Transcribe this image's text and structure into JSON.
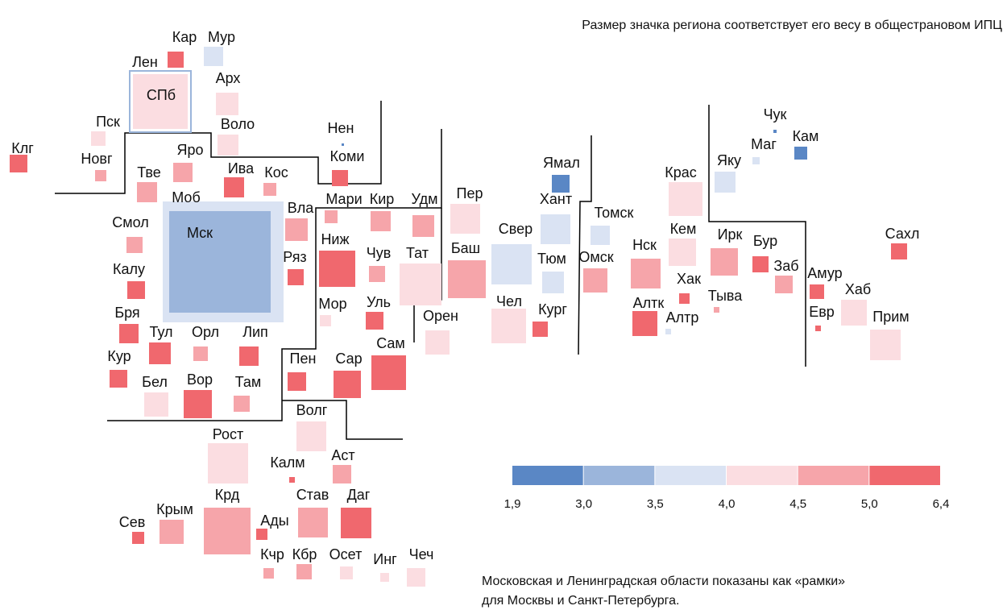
{
  "note_top": "Размер значка региона соответствует его весу в общестрановом ИПЦ",
  "footnote": [
    "Московская и Ленинградская области показаны как «рамки»",
    "для Москвы и Санкт-Петербурга."
  ],
  "legend": {
    "colors": [
      "#5a87c5",
      "#9bb5db",
      "#dae3f3",
      "#fbdde1",
      "#f6a5aa",
      "#f0686e"
    ],
    "ticks": [
      {
        "value": 1.9,
        "label": "1,9"
      },
      {
        "value": 3.0,
        "label": "3,0"
      },
      {
        "value": 3.5,
        "label": "3,5"
      },
      {
        "value": 4.0,
        "label": "4,0"
      },
      {
        "value": 4.5,
        "label": "4,5"
      },
      {
        "value": 5.0,
        "label": "5,0"
      },
      {
        "value": 6.4,
        "label": "6,4"
      }
    ]
  },
  "regions": [
    {
      "label": "Лен",
      "color": "#9bb5db"
    },
    {
      "label": "СПб",
      "color": "#fbdde1"
    },
    {
      "label": "Моб",
      "color": "#dae3f3"
    },
    {
      "label": "Мск",
      "color": "#9bb5db"
    },
    {
      "label": "Кар",
      "color": "#f0686e"
    },
    {
      "label": "Мур",
      "color": "#dae3f3"
    },
    {
      "label": "Арх",
      "color": "#fbdde1"
    },
    {
      "label": "Пск",
      "color": "#fbdde1"
    },
    {
      "label": "Воло",
      "color": "#fbdde1"
    },
    {
      "label": "Клг",
      "color": "#f0686e"
    },
    {
      "label": "Новг",
      "color": "#f6a5aa"
    },
    {
      "label": "Яро",
      "color": "#f6a5aa"
    },
    {
      "label": "Тве",
      "color": "#f6a5aa"
    },
    {
      "label": "Ива",
      "color": "#f0686e"
    },
    {
      "label": "Кос",
      "color": "#f6a5aa"
    },
    {
      "label": "Нен",
      "color": "#5a87c5"
    },
    {
      "label": "Коми",
      "color": "#f0686e"
    },
    {
      "label": "Вла",
      "color": "#f6a5aa"
    },
    {
      "label": "Мари",
      "color": "#f6a5aa"
    },
    {
      "label": "Кир",
      "color": "#f6a5aa"
    },
    {
      "label": "Удм",
      "color": "#f6a5aa"
    },
    {
      "label": "Пер",
      "color": "#fbdde1"
    },
    {
      "label": "Смол",
      "color": "#f6a5aa"
    },
    {
      "label": "Ниж",
      "color": "#f0686e"
    },
    {
      "label": "Ряз",
      "color": "#f0686e"
    },
    {
      "label": "Чув",
      "color": "#f6a5aa"
    },
    {
      "label": "Тат",
      "color": "#fbdde1"
    },
    {
      "label": "Баш",
      "color": "#f6a5aa"
    },
    {
      "label": "Свер",
      "color": "#dae3f3"
    },
    {
      "label": "Ямал",
      "color": "#5a87c5"
    },
    {
      "label": "Хант",
      "color": "#dae3f3"
    },
    {
      "label": "Тюм",
      "color": "#dae3f3"
    },
    {
      "label": "Томск",
      "color": "#dae3f3"
    },
    {
      "label": "Омск",
      "color": "#f6a5aa"
    },
    {
      "label": "Нск",
      "color": "#f6a5aa"
    },
    {
      "label": "Крас",
      "color": "#fbdde1"
    },
    {
      "label": "Кем",
      "color": "#fbdde1"
    },
    {
      "label": "Ирк",
      "color": "#f6a5aa"
    },
    {
      "label": "Бур",
      "color": "#f0686e"
    },
    {
      "label": "Заб",
      "color": "#f6a5aa"
    },
    {
      "label": "Чук",
      "color": "#5a87c5"
    },
    {
      "label": "Маг",
      "color": "#dae3f3"
    },
    {
      "label": "Кам",
      "color": "#5a87c5"
    },
    {
      "label": "Яку",
      "color": "#dae3f3"
    },
    {
      "label": "Хак",
      "color": "#f0686e"
    },
    {
      "label": "Тыва",
      "color": "#f6a5aa"
    },
    {
      "label": "Алтк",
      "color": "#f0686e"
    },
    {
      "label": "Алтр",
      "color": "#dae3f3"
    },
    {
      "label": "Сахл",
      "color": "#f0686e"
    },
    {
      "label": "Амур",
      "color": "#f0686e"
    },
    {
      "label": "Хаб",
      "color": "#fbdde1"
    },
    {
      "label": "Евр",
      "color": "#f0686e"
    },
    {
      "label": "Прим",
      "color": "#fbdde1"
    },
    {
      "label": "Калу",
      "color": "#f0686e"
    },
    {
      "label": "Бря",
      "color": "#f0686e"
    },
    {
      "label": "Тул",
      "color": "#f0686e"
    },
    {
      "label": "Орл",
      "color": "#f6a5aa"
    },
    {
      "label": "Лип",
      "color": "#f0686e"
    },
    {
      "label": "Кур",
      "color": "#f0686e"
    },
    {
      "label": "Бел",
      "color": "#fbdde1"
    },
    {
      "label": "Вор",
      "color": "#f0686e"
    },
    {
      "label": "Там",
      "color": "#f6a5aa"
    },
    {
      "label": "Мор",
      "color": "#fbdde1"
    },
    {
      "label": "Уль",
      "color": "#f0686e"
    },
    {
      "label": "Орен",
      "color": "#fbdde1"
    },
    {
      "label": "Чел",
      "color": "#fbdde1"
    },
    {
      "label": "Кург",
      "color": "#f0686e"
    },
    {
      "label": "Пен",
      "color": "#f0686e"
    },
    {
      "label": "Сар",
      "color": "#f0686e"
    },
    {
      "label": "Сам",
      "color": "#f0686e"
    },
    {
      "label": "Волг",
      "color": "#fbdde1"
    },
    {
      "label": "Рост",
      "color": "#fbdde1"
    },
    {
      "label": "Калм",
      "color": "#f0686e"
    },
    {
      "label": "Аст",
      "color": "#f6a5aa"
    },
    {
      "label": "Сев",
      "color": "#f0686e"
    },
    {
      "label": "Крым",
      "color": "#f6a5aa"
    },
    {
      "label": "Крд",
      "color": "#f6a5aa"
    },
    {
      "label": "Ады",
      "color": "#f0686e"
    },
    {
      "label": "Став",
      "color": "#f6a5aa"
    },
    {
      "label": "Даг",
      "color": "#f0686e"
    },
    {
      "label": "Кчр",
      "color": "#f6a5aa"
    },
    {
      "label": "Кбр",
      "color": "#f6a5aa"
    },
    {
      "label": "Осет",
      "color": "#fbdde1"
    },
    {
      "label": "Инг",
      "color": "#fbdde1"
    },
    {
      "label": "Чеч",
      "color": "#fbdde1"
    }
  ]
}
